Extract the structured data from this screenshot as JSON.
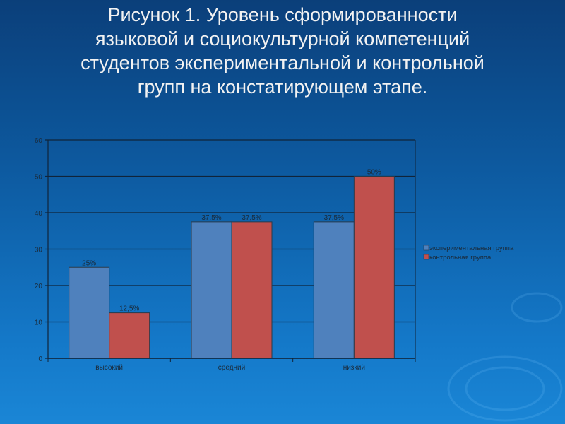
{
  "title": "Рисунок 1.  Уровень сформированности\nязыковой и социокультурной  компетенций\nстудентов экспериментальной и контрольной\nгрупп на констатирующем этапе.",
  "chart_data": {
    "type": "bar",
    "title": "",
    "xlabel": "",
    "ylabel": "",
    "ylim": [
      0,
      60
    ],
    "yticks": [
      0,
      10,
      20,
      30,
      40,
      50,
      60
    ],
    "grid": true,
    "legend_placement": "right",
    "categories": [
      "высокий",
      "средний",
      "низкий"
    ],
    "series": [
      {
        "name": "экспериментальная группа",
        "values": [
          25,
          37.5,
          37.5
        ],
        "labels": [
          "25%",
          "37,5%",
          "37,5%"
        ],
        "color": "#4f81bd"
      },
      {
        "name": "контрольная группа",
        "values": [
          12.5,
          37.5,
          50
        ],
        "labels": [
          "12,5%",
          "37,5%",
          "50%"
        ],
        "color": "#c0504d"
      }
    ]
  }
}
